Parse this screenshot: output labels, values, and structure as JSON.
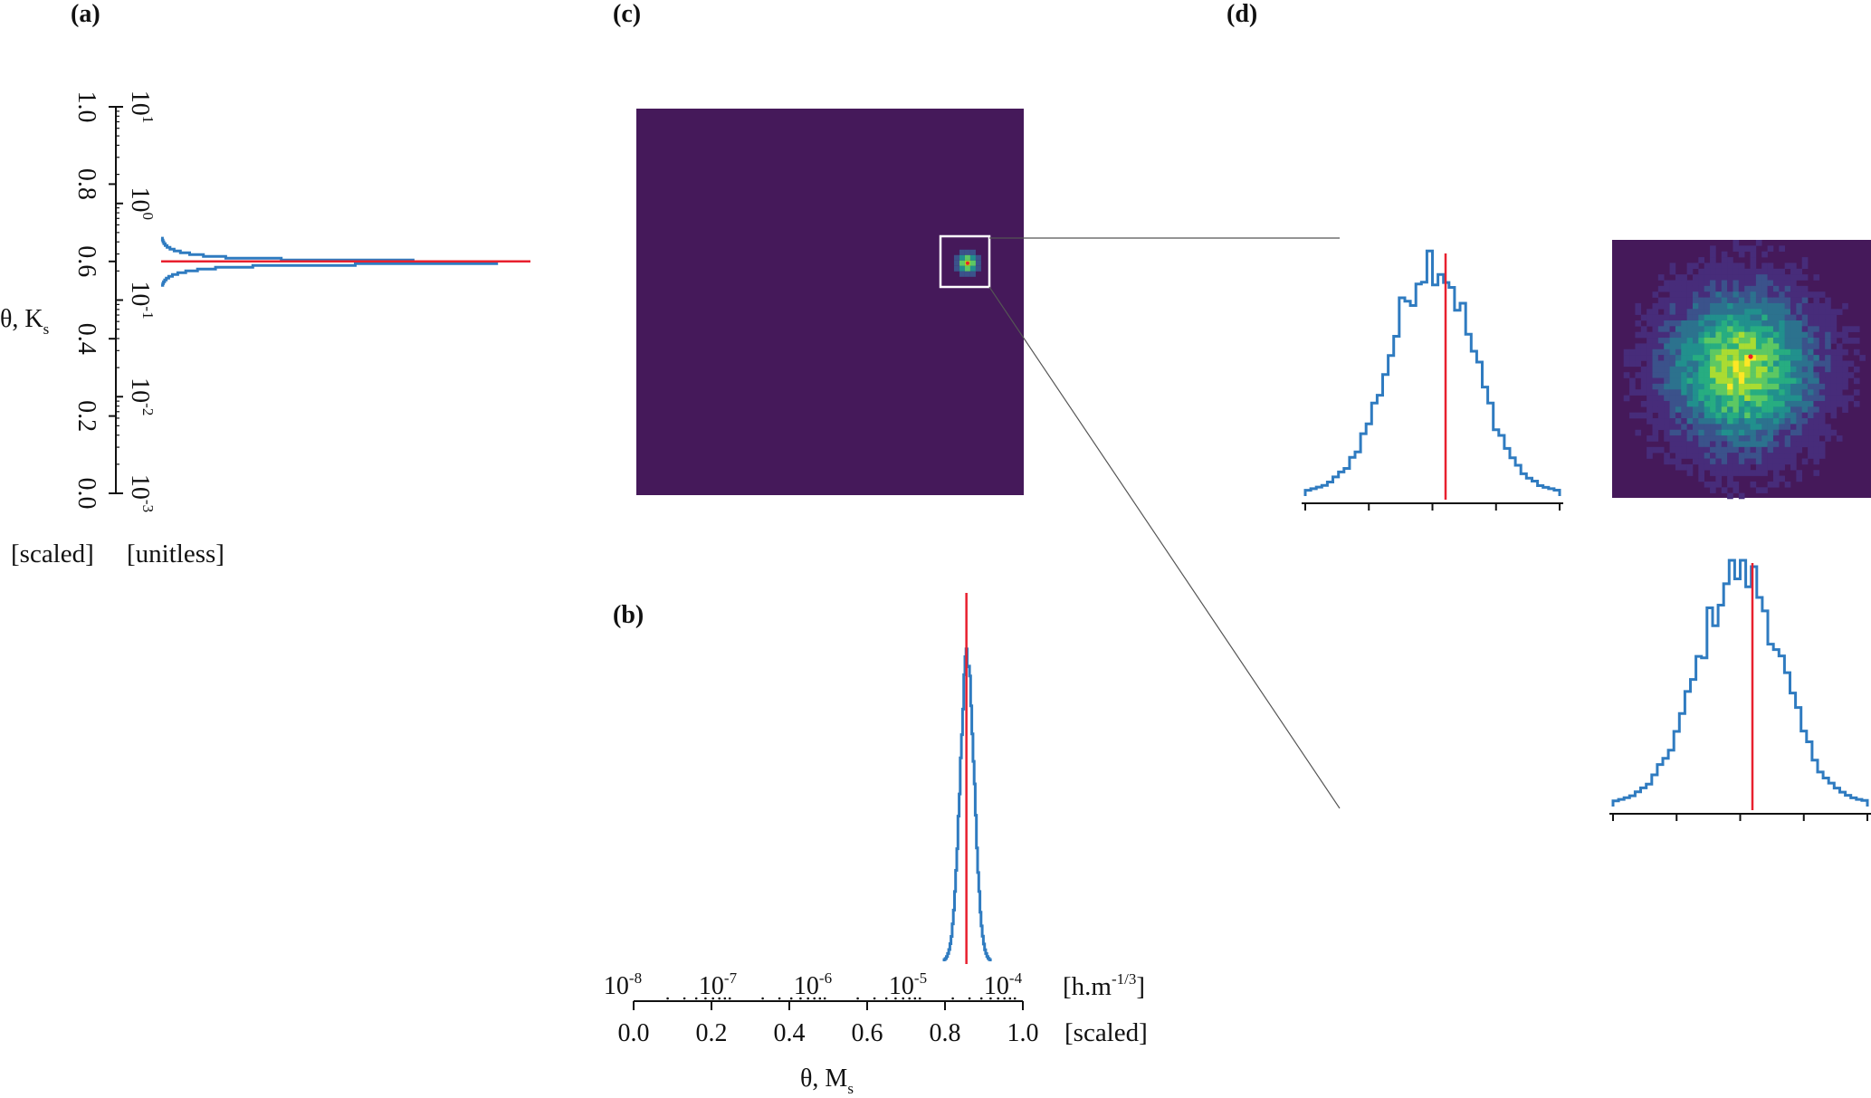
{
  "colors": {
    "posterior": "#2f7bc0",
    "truth": "#e8202e",
    "heatmap_background": "#45195a",
    "axis": "#111111",
    "zoom_box": "#ffffff",
    "connector": "#555555"
  },
  "panel_labels": {
    "a": "(a)",
    "b": "(b)",
    "c": "(c)",
    "d": "(d)"
  },
  "panel_a": {
    "ylabel_main": "θ, K",
    "ylabel_sub": "s",
    "scaled_label": "[scaled]",
    "unit_label": "[unitless]",
    "scaled_ticks": [
      "0.0",
      "0.2",
      "0.4",
      "0.6",
      "0.8",
      "1.0"
    ],
    "log_ticks": [
      {
        "base": "10",
        "exp": "-3"
      },
      {
        "base": "10",
        "exp": "-2"
      },
      {
        "base": "10",
        "exp": "-1"
      },
      {
        "base": "10",
        "exp": "0"
      },
      {
        "base": "10",
        "exp": "1"
      }
    ]
  },
  "panel_b": {
    "xlabel_main": "θ, M",
    "xlabel_sub": "s",
    "scaled_label": "[scaled]",
    "unit_label_main": "[h.m",
    "unit_label_exp": "-1/3",
    "unit_label_end": "]",
    "scaled_ticks": [
      "0.0",
      "0.2",
      "0.4",
      "0.6",
      "0.8",
      "1.0"
    ],
    "log_ticks": [
      {
        "base": "10",
        "exp": "-8"
      },
      {
        "base": "10",
        "exp": "-7"
      },
      {
        "base": "10",
        "exp": "-6"
      },
      {
        "base": "10",
        "exp": "-5"
      },
      {
        "base": "10",
        "exp": "-4"
      }
    ]
  },
  "chart_data": [
    {
      "id": "a",
      "type": "histogram",
      "orientation": "horizontal",
      "variable": "θ, K_s",
      "axis": "scaled",
      "ylim": [
        0,
        1
      ],
      "log_axis_range": [
        "1e-3",
        "1e1"
      ],
      "truth": 0.6,
      "distribution": {
        "center": 0.6,
        "spread": 0.012,
        "tail_extent": 0.06
      }
    },
    {
      "id": "b",
      "type": "histogram",
      "orientation": "vertical",
      "variable": "θ, M_s",
      "axis": "scaled",
      "xlim": [
        0,
        1
      ],
      "log_axis_range": [
        "1e-8",
        "1e-4"
      ],
      "truth": 0.855,
      "distribution": {
        "center": 0.857,
        "spread": 0.018
      }
    },
    {
      "id": "c",
      "type": "heatmap",
      "variables": [
        "θ, M_s",
        "θ, K_s"
      ],
      "xlim": [
        0,
        1
      ],
      "ylim": [
        0,
        1
      ],
      "truth": [
        0.855,
        0.6
      ],
      "zoom_region": {
        "x": [
          0.78,
          0.91
        ],
        "y": [
          0.54,
          0.67
        ]
      }
    },
    {
      "id": "d_top_hist",
      "type": "histogram",
      "orientation": "vertical",
      "truth": 0,
      "distribution": {
        "center": 0,
        "spread": 1
      }
    },
    {
      "id": "d_heatmap",
      "type": "heatmap",
      "grid": [
        45,
        45
      ],
      "truth": [
        0,
        0
      ]
    },
    {
      "id": "d_bottom_hist",
      "type": "histogram",
      "orientation": "vertical",
      "truth": 0,
      "distribution": {
        "center": 0,
        "spread": 1
      }
    }
  ]
}
